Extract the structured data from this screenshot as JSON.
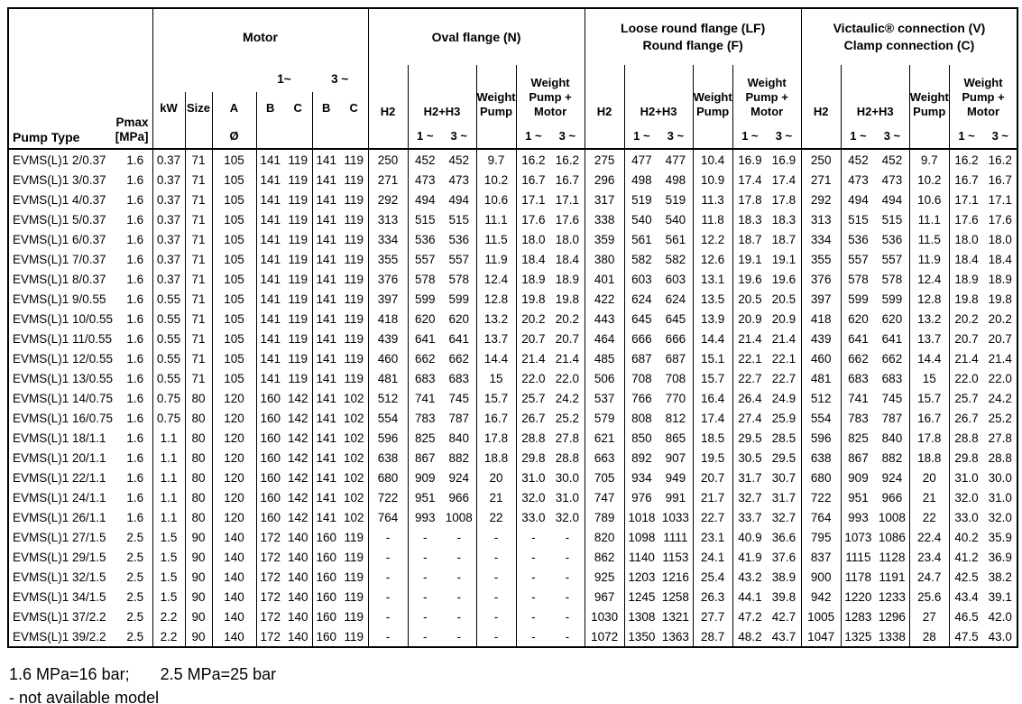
{
  "header": {
    "pump_type": "Pump Type",
    "pmax": "Pmax\n[MPa]",
    "motor": {
      "title": "Motor",
      "p1": "1~",
      "p3": "3 ~",
      "kw": "kW",
      "size": "Size",
      "a": "A",
      "b": "B",
      "c": "C",
      "diameter": "Ø"
    },
    "groups": [
      {
        "title": "Oval flange (N)"
      },
      {
        "title": "Loose round flange (LF)\nRound flange (F)"
      },
      {
        "title": "Victaulic® connection (V)\nClamp connection (C)"
      }
    ],
    "sub": {
      "h2": "H2",
      "h2h3": "H2+H3",
      "weight_pump": "Weight\nPump",
      "weight_pump_motor": "Weight\nPump +\nMotor",
      "p1": "1 ~",
      "p3": "3 ~"
    }
  },
  "footer": {
    "pressure_note_1": "1.6 MPa=16 bar;",
    "pressure_note_2": "2.5 MPa=25 bar",
    "availability_note": "- not available model"
  },
  "rows": [
    {
      "type": "EVMS(L)1 2/0.37",
      "pmax": "1.6",
      "kw": "0.37",
      "size": "71",
      "a": "105",
      "b1": "141",
      "c1": "119",
      "b3": "141",
      "c3": "119",
      "n": [
        "250",
        "452",
        "452",
        "9.7",
        "16.2",
        "16.2"
      ],
      "lf": [
        "275",
        "477",
        "477",
        "10.4",
        "16.9",
        "16.9"
      ],
      "vc": [
        "250",
        "452",
        "452",
        "9.7",
        "16.2",
        "16.2"
      ]
    },
    {
      "type": "EVMS(L)1 3/0.37",
      "pmax": "1.6",
      "kw": "0.37",
      "size": "71",
      "a": "105",
      "b1": "141",
      "c1": "119",
      "b3": "141",
      "c3": "119",
      "n": [
        "271",
        "473",
        "473",
        "10.2",
        "16.7",
        "16.7"
      ],
      "lf": [
        "296",
        "498",
        "498",
        "10.9",
        "17.4",
        "17.4"
      ],
      "vc": [
        "271",
        "473",
        "473",
        "10.2",
        "16.7",
        "16.7"
      ]
    },
    {
      "type": "EVMS(L)1 4/0.37",
      "pmax": "1.6",
      "kw": "0.37",
      "size": "71",
      "a": "105",
      "b1": "141",
      "c1": "119",
      "b3": "141",
      "c3": "119",
      "n": [
        "292",
        "494",
        "494",
        "10.6",
        "17.1",
        "17.1"
      ],
      "lf": [
        "317",
        "519",
        "519",
        "11.3",
        "17.8",
        "17.8"
      ],
      "vc": [
        "292",
        "494",
        "494",
        "10.6",
        "17.1",
        "17.1"
      ]
    },
    {
      "type": "EVMS(L)1 5/0.37",
      "pmax": "1.6",
      "kw": "0.37",
      "size": "71",
      "a": "105",
      "b1": "141",
      "c1": "119",
      "b3": "141",
      "c3": "119",
      "n": [
        "313",
        "515",
        "515",
        "11.1",
        "17.6",
        "17.6"
      ],
      "lf": [
        "338",
        "540",
        "540",
        "11.8",
        "18.3",
        "18.3"
      ],
      "vc": [
        "313",
        "515",
        "515",
        "11.1",
        "17.6",
        "17.6"
      ]
    },
    {
      "type": "EVMS(L)1 6/0.37",
      "pmax": "1.6",
      "kw": "0.37",
      "size": "71",
      "a": "105",
      "b1": "141",
      "c1": "119",
      "b3": "141",
      "c3": "119",
      "n": [
        "334",
        "536",
        "536",
        "11.5",
        "18.0",
        "18.0"
      ],
      "lf": [
        "359",
        "561",
        "561",
        "12.2",
        "18.7",
        "18.7"
      ],
      "vc": [
        "334",
        "536",
        "536",
        "11.5",
        "18.0",
        "18.0"
      ]
    },
    {
      "type": "EVMS(L)1 7/0.37",
      "pmax": "1.6",
      "kw": "0.37",
      "size": "71",
      "a": "105",
      "b1": "141",
      "c1": "119",
      "b3": "141",
      "c3": "119",
      "n": [
        "355",
        "557",
        "557",
        "11.9",
        "18.4",
        "18.4"
      ],
      "lf": [
        "380",
        "582",
        "582",
        "12.6",
        "19.1",
        "19.1"
      ],
      "vc": [
        "355",
        "557",
        "557",
        "11.9",
        "18.4",
        "18.4"
      ]
    },
    {
      "type": "EVMS(L)1 8/0.37",
      "pmax": "1.6",
      "kw": "0.37",
      "size": "71",
      "a": "105",
      "b1": "141",
      "c1": "119",
      "b3": "141",
      "c3": "119",
      "n": [
        "376",
        "578",
        "578",
        "12.4",
        "18.9",
        "18.9"
      ],
      "lf": [
        "401",
        "603",
        "603",
        "13.1",
        "19.6",
        "19.6"
      ],
      "vc": [
        "376",
        "578",
        "578",
        "12.4",
        "18.9",
        "18.9"
      ]
    },
    {
      "type": "EVMS(L)1 9/0.55",
      "pmax": "1.6",
      "kw": "0.55",
      "size": "71",
      "a": "105",
      "b1": "141",
      "c1": "119",
      "b3": "141",
      "c3": "119",
      "n": [
        "397",
        "599",
        "599",
        "12.8",
        "19.8",
        "19.8"
      ],
      "lf": [
        "422",
        "624",
        "624",
        "13.5",
        "20.5",
        "20.5"
      ],
      "vc": [
        "397",
        "599",
        "599",
        "12.8",
        "19.8",
        "19.8"
      ]
    },
    {
      "type": "EVMS(L)1 10/0.55",
      "pmax": "1.6",
      "kw": "0.55",
      "size": "71",
      "a": "105",
      "b1": "141",
      "c1": "119",
      "b3": "141",
      "c3": "119",
      "n": [
        "418",
        "620",
        "620",
        "13.2",
        "20.2",
        "20.2"
      ],
      "lf": [
        "443",
        "645",
        "645",
        "13.9",
        "20.9",
        "20.9"
      ],
      "vc": [
        "418",
        "620",
        "620",
        "13.2",
        "20.2",
        "20.2"
      ]
    },
    {
      "type": "EVMS(L)1 11/0.55",
      "pmax": "1.6",
      "kw": "0.55",
      "size": "71",
      "a": "105",
      "b1": "141",
      "c1": "119",
      "b3": "141",
      "c3": "119",
      "n": [
        "439",
        "641",
        "641",
        "13.7",
        "20.7",
        "20.7"
      ],
      "lf": [
        "464",
        "666",
        "666",
        "14.4",
        "21.4",
        "21.4"
      ],
      "vc": [
        "439",
        "641",
        "641",
        "13.7",
        "20.7",
        "20.7"
      ]
    },
    {
      "type": "EVMS(L)1 12/0.55",
      "pmax": "1.6",
      "kw": "0.55",
      "size": "71",
      "a": "105",
      "b1": "141",
      "c1": "119",
      "b3": "141",
      "c3": "119",
      "n": [
        "460",
        "662",
        "662",
        "14.4",
        "21.4",
        "21.4"
      ],
      "lf": [
        "485",
        "687",
        "687",
        "15.1",
        "22.1",
        "22.1"
      ],
      "vc": [
        "460",
        "662",
        "662",
        "14.4",
        "21.4",
        "21.4"
      ]
    },
    {
      "type": "EVMS(L)1 13/0.55",
      "pmax": "1.6",
      "kw": "0.55",
      "size": "71",
      "a": "105",
      "b1": "141",
      "c1": "119",
      "b3": "141",
      "c3": "119",
      "n": [
        "481",
        "683",
        "683",
        "15",
        "22.0",
        "22.0"
      ],
      "lf": [
        "506",
        "708",
        "708",
        "15.7",
        "22.7",
        "22.7"
      ],
      "vc": [
        "481",
        "683",
        "683",
        "15",
        "22.0",
        "22.0"
      ]
    },
    {
      "type": "EVMS(L)1 14/0.75",
      "pmax": "1.6",
      "kw": "0.75",
      "size": "80",
      "a": "120",
      "b1": "160",
      "c1": "142",
      "b3": "141",
      "c3": "102",
      "n": [
        "512",
        "741",
        "745",
        "15.7",
        "25.7",
        "24.2"
      ],
      "lf": [
        "537",
        "766",
        "770",
        "16.4",
        "26.4",
        "24.9"
      ],
      "vc": [
        "512",
        "741",
        "745",
        "15.7",
        "25.7",
        "24.2"
      ]
    },
    {
      "type": "EVMS(L)1 16/0.75",
      "pmax": "1.6",
      "kw": "0.75",
      "size": "80",
      "a": "120",
      "b1": "160",
      "c1": "142",
      "b3": "141",
      "c3": "102",
      "n": [
        "554",
        "783",
        "787",
        "16.7",
        "26.7",
        "25.2"
      ],
      "lf": [
        "579",
        "808",
        "812",
        "17.4",
        "27.4",
        "25.9"
      ],
      "vc": [
        "554",
        "783",
        "787",
        "16.7",
        "26.7",
        "25.2"
      ]
    },
    {
      "type": "EVMS(L)1 18/1.1",
      "pmax": "1.6",
      "kw": "1.1",
      "size": "80",
      "a": "120",
      "b1": "160",
      "c1": "142",
      "b3": "141",
      "c3": "102",
      "n": [
        "596",
        "825",
        "840",
        "17.8",
        "28.8",
        "27.8"
      ],
      "lf": [
        "621",
        "850",
        "865",
        "18.5",
        "29.5",
        "28.5"
      ],
      "vc": [
        "596",
        "825",
        "840",
        "17.8",
        "28.8",
        "27.8"
      ]
    },
    {
      "type": "EVMS(L)1 20/1.1",
      "pmax": "1.6",
      "kw": "1.1",
      "size": "80",
      "a": "120",
      "b1": "160",
      "c1": "142",
      "b3": "141",
      "c3": "102",
      "n": [
        "638",
        "867",
        "882",
        "18.8",
        "29.8",
        "28.8"
      ],
      "lf": [
        "663",
        "892",
        "907",
        "19.5",
        "30.5",
        "29.5"
      ],
      "vc": [
        "638",
        "867",
        "882",
        "18.8",
        "29.8",
        "28.8"
      ]
    },
    {
      "type": "EVMS(L)1 22/1.1",
      "pmax": "1.6",
      "kw": "1.1",
      "size": "80",
      "a": "120",
      "b1": "160",
      "c1": "142",
      "b3": "141",
      "c3": "102",
      "n": [
        "680",
        "909",
        "924",
        "20",
        "31.0",
        "30.0"
      ],
      "lf": [
        "705",
        "934",
        "949",
        "20.7",
        "31.7",
        "30.7"
      ],
      "vc": [
        "680",
        "909",
        "924",
        "20",
        "31.0",
        "30.0"
      ]
    },
    {
      "type": "EVMS(L)1 24/1.1",
      "pmax": "1.6",
      "kw": "1.1",
      "size": "80",
      "a": "120",
      "b1": "160",
      "c1": "142",
      "b3": "141",
      "c3": "102",
      "n": [
        "722",
        "951",
        "966",
        "21",
        "32.0",
        "31.0"
      ],
      "lf": [
        "747",
        "976",
        "991",
        "21.7",
        "32.7",
        "31.7"
      ],
      "vc": [
        "722",
        "951",
        "966",
        "21",
        "32.0",
        "31.0"
      ]
    },
    {
      "type": "EVMS(L)1 26/1.1",
      "pmax": "1.6",
      "kw": "1.1",
      "size": "80",
      "a": "120",
      "b1": "160",
      "c1": "142",
      "b3": "141",
      "c3": "102",
      "n": [
        "764",
        "993",
        "1008",
        "22",
        "33.0",
        "32.0"
      ],
      "lf": [
        "789",
        "1018",
        "1033",
        "22.7",
        "33.7",
        "32.7"
      ],
      "vc": [
        "764",
        "993",
        "1008",
        "22",
        "33.0",
        "32.0"
      ]
    },
    {
      "type": "EVMS(L)1 27/1.5",
      "pmax": "2.5",
      "kw": "1.5",
      "size": "90",
      "a": "140",
      "b1": "172",
      "c1": "140",
      "b3": "160",
      "c3": "119",
      "n": [
        "-",
        "-",
        "-",
        "-",
        "-",
        "-"
      ],
      "lf": [
        "820",
        "1098",
        "1111",
        "23.1",
        "40.9",
        "36.6"
      ],
      "vc": [
        "795",
        "1073",
        "1086",
        "22.4",
        "40.2",
        "35.9"
      ]
    },
    {
      "type": "EVMS(L)1 29/1.5",
      "pmax": "2.5",
      "kw": "1.5",
      "size": "90",
      "a": "140",
      "b1": "172",
      "c1": "140",
      "b3": "160",
      "c3": "119",
      "n": [
        "-",
        "-",
        "-",
        "-",
        "-",
        "-"
      ],
      "lf": [
        "862",
        "1140",
        "1153",
        "24.1",
        "41.9",
        "37.6"
      ],
      "vc": [
        "837",
        "1115",
        "1128",
        "23.4",
        "41.2",
        "36.9"
      ]
    },
    {
      "type": "EVMS(L)1 32/1.5",
      "pmax": "2.5",
      "kw": "1.5",
      "size": "90",
      "a": "140",
      "b1": "172",
      "c1": "140",
      "b3": "160",
      "c3": "119",
      "n": [
        "-",
        "-",
        "-",
        "-",
        "-",
        "-"
      ],
      "lf": [
        "925",
        "1203",
        "1216",
        "25.4",
        "43.2",
        "38.9"
      ],
      "vc": [
        "900",
        "1178",
        "1191",
        "24.7",
        "42.5",
        "38.2"
      ]
    },
    {
      "type": "EVMS(L)1 34/1.5",
      "pmax": "2.5",
      "kw": "1.5",
      "size": "90",
      "a": "140",
      "b1": "172",
      "c1": "140",
      "b3": "160",
      "c3": "119",
      "n": [
        "-",
        "-",
        "-",
        "-",
        "-",
        "-"
      ],
      "lf": [
        "967",
        "1245",
        "1258",
        "26.3",
        "44.1",
        "39.8"
      ],
      "vc": [
        "942",
        "1220",
        "1233",
        "25.6",
        "43.4",
        "39.1"
      ]
    },
    {
      "type": "EVMS(L)1 37/2.2",
      "pmax": "2.5",
      "kw": "2.2",
      "size": "90",
      "a": "140",
      "b1": "172",
      "c1": "140",
      "b3": "160",
      "c3": "119",
      "n": [
        "-",
        "-",
        "-",
        "-",
        "-",
        "-"
      ],
      "lf": [
        "1030",
        "1308",
        "1321",
        "27.7",
        "47.2",
        "42.7"
      ],
      "vc": [
        "1005",
        "1283",
        "1296",
        "27",
        "46.5",
        "42.0"
      ]
    },
    {
      "type": "EVMS(L)1 39/2.2",
      "pmax": "2.5",
      "kw": "2.2",
      "size": "90",
      "a": "140",
      "b1": "172",
      "c1": "140",
      "b3": "160",
      "c3": "119",
      "n": [
        "-",
        "-",
        "-",
        "-",
        "-",
        "-"
      ],
      "lf": [
        "1072",
        "1350",
        "1363",
        "28.7",
        "48.2",
        "43.7"
      ],
      "vc": [
        "1047",
        "1325",
        "1338",
        "28",
        "47.5",
        "43.0"
      ]
    }
  ]
}
